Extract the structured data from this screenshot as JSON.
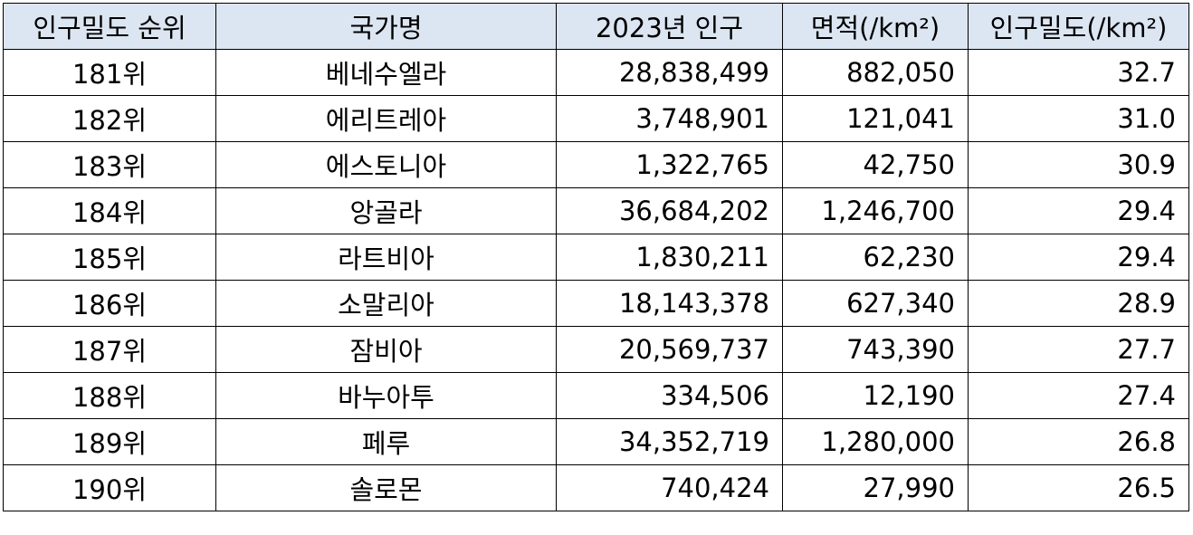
{
  "table": {
    "headers": [
      "인구밀도 순위",
      "국가명",
      "2023년 인구",
      "면적(/km²)",
      "인구밀도(/km²)"
    ],
    "rows": [
      [
        "181위",
        "베네수엘라",
        "28,838,499",
        "882,050",
        "32.7"
      ],
      [
        "182위",
        "에리트레아",
        "3,748,901",
        "121,041",
        "31.0"
      ],
      [
        "183위",
        "에스토니아",
        "1,322,765",
        "42,750",
        "30.9"
      ],
      [
        "184위",
        "앙골라",
        "36,684,202",
        "1,246,700",
        "29.4"
      ],
      [
        "185위",
        "라트비아",
        "1,830,211",
        "62,230",
        "29.4"
      ],
      [
        "186위",
        "소말리아",
        "18,143,378",
        "627,340",
        "28.9"
      ],
      [
        "187위",
        "잠비아",
        "20,569,737",
        "743,390",
        "27.7"
      ],
      [
        "188위",
        "바누아투",
        "334,506",
        "12,190",
        "27.4"
      ],
      [
        "189위",
        "페루",
        "34,352,719",
        "1,280,000",
        "26.8"
      ],
      [
        "190위",
        "솔로몬",
        "740,424",
        "27,990",
        "26.5"
      ]
    ]
  },
  "colors": {
    "header_bg": "#dce6f2",
    "border": "#000000",
    "text": "#000000"
  }
}
